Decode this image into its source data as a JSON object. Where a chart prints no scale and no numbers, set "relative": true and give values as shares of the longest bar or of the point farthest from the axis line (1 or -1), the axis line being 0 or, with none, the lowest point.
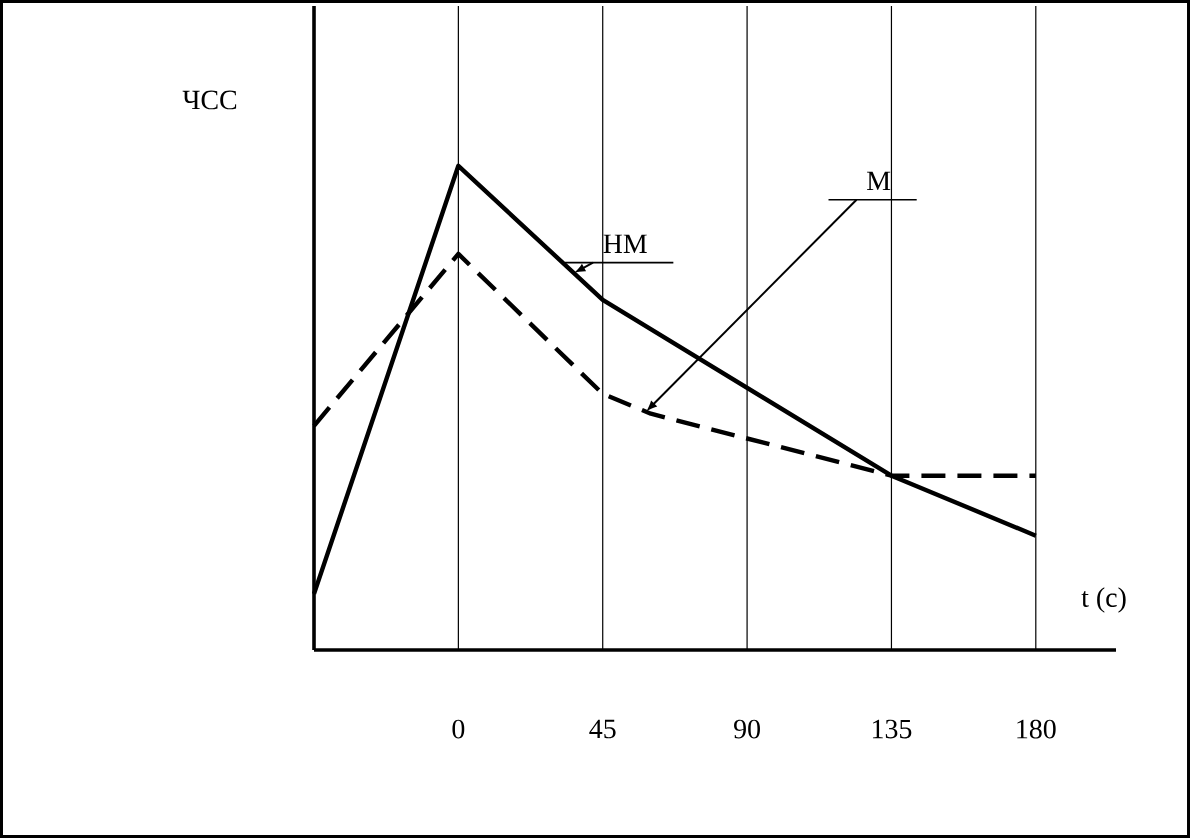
{
  "chart_data": {
    "type": "line",
    "relative": true,
    "xlabel": "t (c)",
    "ylabel": "ЧСС",
    "xlim": [
      -45,
      205
    ],
    "xticks": [
      0,
      45,
      90,
      135,
      180
    ],
    "grid": "x",
    "line_style": "solid",
    "series": [
      {
        "name": "НМ",
        "color": "#000000",
        "x": [
          -45,
          0,
          45,
          135,
          180
        ],
        "values": [
          0.116,
          1,
          0.723,
          0.36,
          0.236
        ]
      },
      {
        "name": "М",
        "color": "#000000",
        "line_style": "dashed",
        "x": [
          -45,
          0,
          45,
          60,
          135,
          180
        ],
        "values": [
          0.463,
          0.818,
          0.529,
          0.488,
          0.36,
          0.36
        ]
      }
    ]
  }
}
